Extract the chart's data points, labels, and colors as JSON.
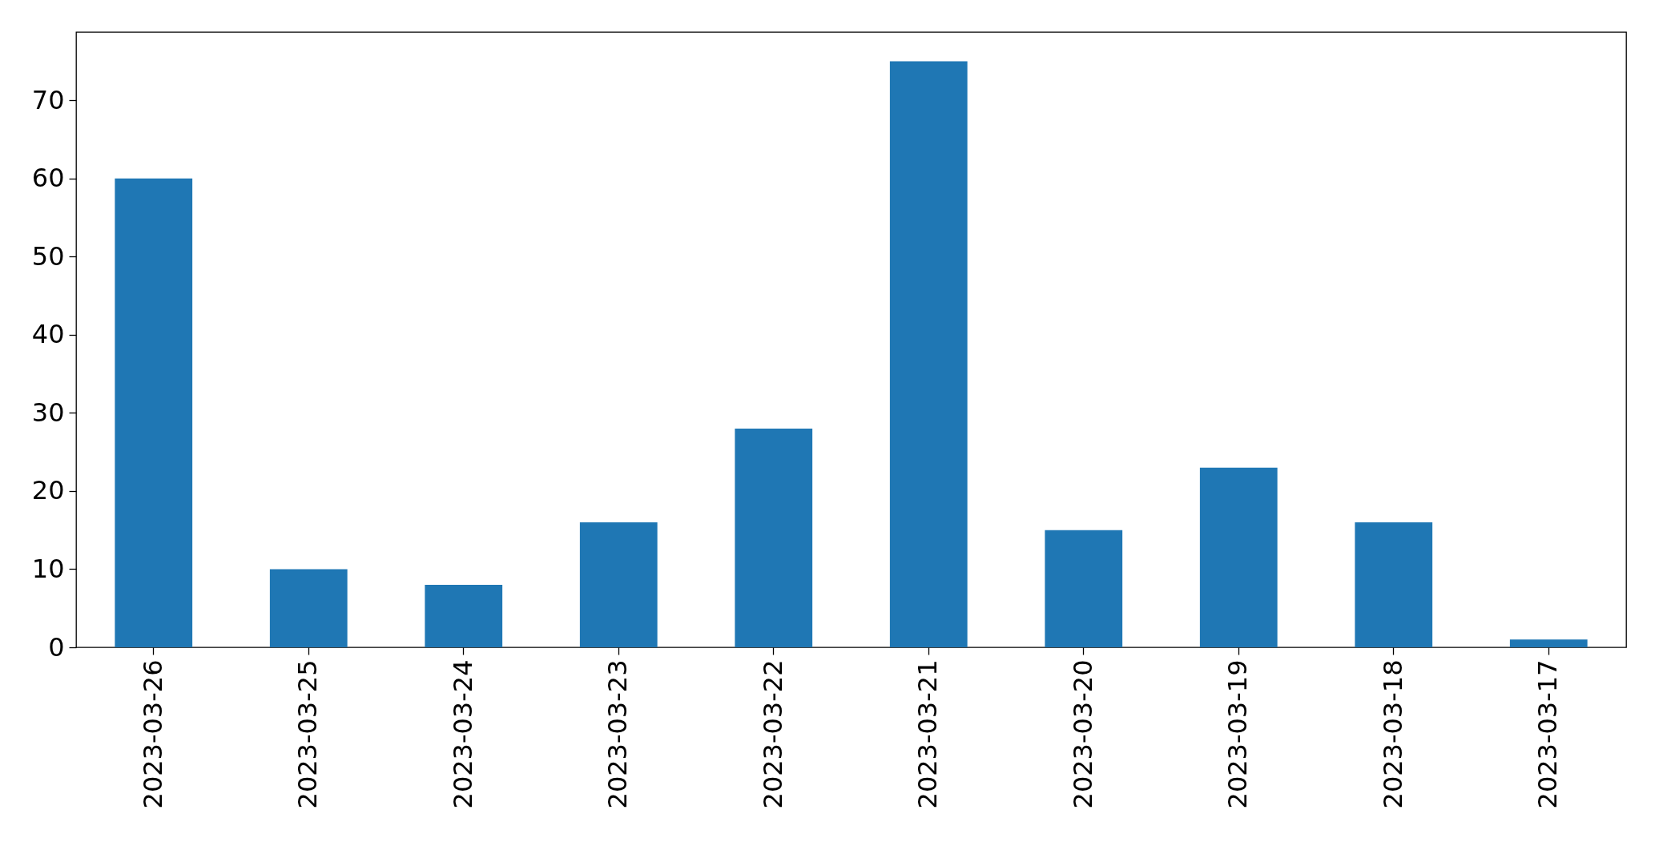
{
  "chart_data": {
    "type": "bar",
    "categories": [
      "2023-03-26",
      "2023-03-25",
      "2023-03-24",
      "2023-03-23",
      "2023-03-22",
      "2023-03-21",
      "2023-03-20",
      "2023-03-19",
      "2023-03-18",
      "2023-03-17"
    ],
    "values": [
      60,
      10,
      8,
      16,
      28,
      75,
      15,
      23,
      16,
      1
    ],
    "color": "#1f77b4",
    "ylim": [
      0,
      78.75
    ],
    "yticks": [
      0,
      10,
      20,
      30,
      40,
      50,
      60,
      70
    ],
    "grid": false
  }
}
